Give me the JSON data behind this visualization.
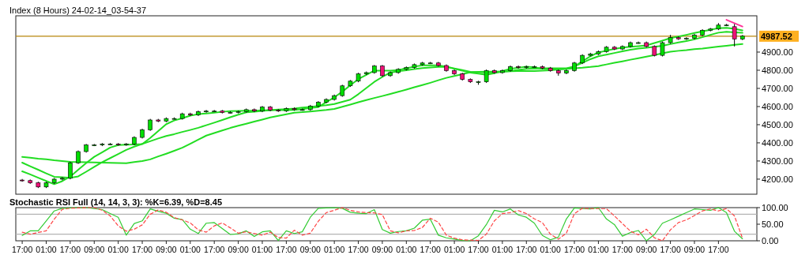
{
  "chart_data": [
    {
      "type": "candlestick",
      "title": "Index (8 Hours) 24-02-14_03-54-37",
      "ylim": [
        4117,
        5100
      ],
      "yticks": [
        {
          "value": 4200,
          "label": "4200.00"
        },
        {
          "value": 4300,
          "label": "4300.00"
        },
        {
          "value": 4400,
          "label": "4400.00"
        },
        {
          "value": 4500,
          "label": "4500.00"
        },
        {
          "value": 4600,
          "label": "4600.00"
        },
        {
          "value": 4700,
          "label": "4700.00"
        },
        {
          "value": 4800,
          "label": "4800.00"
        },
        {
          "value": 4900,
          "label": "4900.00"
        }
      ],
      "categories": [
        null,
        null,
        null,
        null,
        null,
        null,
        null,
        null,
        null,
        null,
        null,
        null,
        null,
        null,
        null,
        null,
        null,
        null,
        null,
        null,
        null,
        null,
        null,
        null,
        null,
        null,
        null,
        null,
        null,
        null,
        null,
        null,
        null,
        null,
        null,
        null,
        null,
        null,
        null,
        null,
        null,
        null,
        null,
        null,
        null,
        null,
        null,
        null,
        null,
        null,
        null,
        null,
        null,
        null,
        null,
        null,
        null,
        null,
        null,
        null,
        null,
        null,
        null,
        null,
        null,
        null,
        null,
        null,
        null,
        null,
        null,
        null,
        null,
        null,
        null,
        null,
        null,
        null,
        null,
        null,
        null,
        null,
        null,
        null,
        null,
        null,
        null,
        null,
        null,
        null,
        null
      ],
      "ohlc": [
        [
          4195,
          4201,
          4186,
          4192
        ],
        [
          4192,
          4198,
          4174,
          4180
        ],
        [
          4180,
          4186,
          4151,
          4157
        ],
        [
          4157,
          4186,
          4151,
          4180
        ],
        [
          4180,
          4206,
          4174,
          4200
        ],
        [
          4200,
          4211,
          4194,
          4205
        ],
        [
          4205,
          4296,
          4199,
          4290
        ],
        [
          4290,
          4358,
          4284,
          4352
        ],
        [
          4352,
          4394,
          4346,
          4388
        ],
        [
          4388,
          4394,
          4382,
          4388
        ],
        [
          4388,
          4399,
          4382,
          4393
        ],
        [
          4393,
          4399,
          4387,
          4393
        ],
        [
          4393,
          4399,
          4384,
          4390
        ],
        [
          4390,
          4399,
          4384,
          4393
        ],
        [
          4393,
          4436,
          4387,
          4430
        ],
        [
          4430,
          4478,
          4424,
          4472
        ],
        [
          4472,
          4532,
          4466,
          4526
        ],
        [
          4526,
          4532,
          4514,
          4520
        ],
        [
          4520,
          4540,
          4514,
          4534
        ],
        [
          4534,
          4540,
          4528,
          4534
        ],
        [
          4534,
          4566,
          4528,
          4560
        ],
        [
          4560,
          4566,
          4548,
          4554
        ],
        [
          4554,
          4578,
          4548,
          4572
        ],
        [
          4572,
          4581,
          4566,
          4575
        ],
        [
          4575,
          4581,
          4569,
          4575
        ],
        [
          4575,
          4581,
          4562,
          4568
        ],
        [
          4568,
          4574,
          4562,
          4568
        ],
        [
          4568,
          4578,
          4562,
          4572
        ],
        [
          4572,
          4589,
          4566,
          4583
        ],
        [
          4583,
          4589,
          4569,
          4575
        ],
        [
          4575,
          4603,
          4569,
          4597
        ],
        [
          4597,
          4603,
          4574,
          4580
        ],
        [
          4580,
          4586,
          4570,
          4576
        ],
        [
          4576,
          4595,
          4570,
          4589
        ],
        [
          4589,
          4595,
          4577,
          4583
        ],
        [
          4583,
          4589,
          4577,
          4583
        ],
        [
          4583,
          4609,
          4577,
          4603
        ],
        [
          4603,
          4630,
          4597,
          4624
        ],
        [
          4624,
          4645,
          4618,
          4639
        ],
        [
          4639,
          4666,
          4633,
          4660
        ],
        [
          4660,
          4720,
          4654,
          4714
        ],
        [
          4714,
          4746,
          4708,
          4740
        ],
        [
          4740,
          4786,
          4734,
          4780
        ],
        [
          4780,
          4793,
          4774,
          4787
        ],
        [
          4787,
          4829,
          4781,
          4823
        ],
        [
          4823,
          4829,
          4764,
          4770
        ],
        [
          4770,
          4793,
          4764,
          4787
        ],
        [
          4787,
          4811,
          4781,
          4805
        ],
        [
          4805,
          4821,
          4799,
          4815
        ],
        [
          4815,
          4837,
          4809,
          4831
        ],
        [
          4831,
          4846,
          4825,
          4840
        ],
        [
          4840,
          4846,
          4834,
          4840
        ],
        [
          4840,
          4846,
          4820,
          4826
        ],
        [
          4826,
          4832,
          4792,
          4798
        ],
        [
          4798,
          4804,
          4774,
          4780
        ],
        [
          4780,
          4786,
          4743,
          4749
        ],
        [
          4749,
          4755,
          4730,
          4736
        ],
        [
          4736,
          4742,
          4720,
          4736
        ],
        [
          4736,
          4804,
          4730,
          4798
        ],
        [
          4798,
          4804,
          4781,
          4787
        ],
        [
          4787,
          4804,
          4781,
          4798
        ],
        [
          4798,
          4826,
          4792,
          4820
        ],
        [
          4820,
          4826,
          4809,
          4815
        ],
        [
          4815,
          4826,
          4809,
          4820
        ],
        [
          4820,
          4826,
          4814,
          4820
        ],
        [
          4820,
          4826,
          4806,
          4812
        ],
        [
          4812,
          4818,
          4792,
          4798
        ],
        [
          4798,
          4804,
          4770,
          4784
        ],
        [
          4784,
          4804,
          4778,
          4798
        ],
        [
          4798,
          4846,
          4792,
          4840
        ],
        [
          4840,
          4888,
          4834,
          4882
        ],
        [
          4882,
          4896,
          4876,
          4890
        ],
        [
          4890,
          4909,
          4884,
          4903
        ],
        [
          4903,
          4933,
          4897,
          4927
        ],
        [
          4927,
          4933,
          4911,
          4917
        ],
        [
          4917,
          4937,
          4911,
          4931
        ],
        [
          4931,
          4958,
          4925,
          4952
        ],
        [
          4952,
          4958,
          4946,
          4952
        ],
        [
          4952,
          4958,
          4925,
          4931
        ],
        [
          4931,
          4937,
          4876,
          4882
        ],
        [
          4882,
          4958,
          4876,
          4952
        ],
        [
          4952,
          4995,
          4946,
          4980
        ],
        [
          4980,
          4986,
          4967,
          4973
        ],
        [
          4973,
          4982,
          4967,
          4976
        ],
        [
          4976,
          5000,
          4970,
          4994
        ],
        [
          4994,
          5026,
          4988,
          5020
        ],
        [
          5020,
          5033,
          5014,
          5027
        ],
        [
          5027,
          5060,
          5021,
          5049
        ],
        [
          5049,
          5055,
          5043,
          5049
        ],
        [
          5040,
          5055,
          4931,
          4972
        ],
        [
          4972,
          4994,
          4966,
          4988
        ]
      ],
      "series": [
        {
          "type": "line",
          "color": "#22dd22",
          "values": [
            4323,
            4318,
            4313,
            4309,
            4304,
            4300,
            4295,
            4294,
            4293,
            4292,
            4291,
            4290,
            4289,
            4288,
            4294,
            4300,
            4309,
            4325,
            4340,
            4356,
            4373,
            4395,
            4418,
            4440,
            4454,
            4468,
            4482,
            4494,
            4505,
            4517,
            4528,
            4540,
            4549,
            4557,
            4566,
            4569,
            4573,
            4577,
            4581,
            4587,
            4599,
            4611,
            4624,
            4636,
            4647,
            4658,
            4669,
            4681,
            4693,
            4706,
            4718,
            4731,
            4745,
            4758,
            4768,
            4778,
            4789,
            4791,
            4792,
            4792,
            4793,
            4794,
            4795,
            4795,
            4796,
            4798,
            4800,
            4804,
            4807,
            4811,
            4814,
            4818,
            4823,
            4832,
            4841,
            4849,
            4858,
            4866,
            4875,
            4884,
            4893,
            4902,
            4907,
            4911,
            4916,
            4920,
            4925,
            4930,
            4935,
            4940,
            4945
          ]
        },
        {
          "type": "line",
          "color": "#22dd22",
          "values": [
            4291,
            4271,
            4252,
            4232,
            4213,
            4210,
            4207,
            4215,
            4241,
            4268,
            4294,
            4316,
            4338,
            4361,
            4379,
            4394,
            4409,
            4424,
            4438,
            4448,
            4460,
            4471,
            4483,
            4497,
            4511,
            4526,
            4541,
            4555,
            4568,
            4572,
            4576,
            4580,
            4583,
            4586,
            4589,
            4594,
            4598,
            4603,
            4607,
            4614,
            4626,
            4638,
            4668,
            4702,
            4736,
            4763,
            4787,
            4794,
            4800,
            4806,
            4812,
            4815,
            4818,
            4819,
            4810,
            4801,
            4791,
            4789,
            4788,
            4787,
            4791,
            4796,
            4802,
            4807,
            4809,
            4811,
            4811,
            4811,
            4811,
            4821,
            4841,
            4861,
            4877,
            4886,
            4895,
            4904,
            4913,
            4919,
            4924,
            4929,
            4935,
            4944,
            4953,
            4961,
            4970,
            4982,
            4995,
            5007,
            5012,
            5009,
            5006
          ]
        },
        {
          "type": "line",
          "color": "#22dd22",
          "values": [
            4243,
            4226,
            4208,
            4190,
            4172,
            4189,
            4214,
            4252,
            4289,
            4323,
            4348,
            4374,
            4388,
            4390,
            4391,
            4393,
            4427,
            4465,
            4503,
            4523,
            4536,
            4550,
            4558,
            4562,
            4566,
            4571,
            4575,
            4576,
            4577,
            4577,
            4579,
            4580,
            4580,
            4580,
            4581,
            4586,
            4592,
            4597,
            4624,
            4651,
            4682,
            4717,
            4751,
            4774,
            4798,
            4798,
            4798,
            4801,
            4811,
            4820,
            4827,
            4827,
            4827,
            4819,
            4808,
            4798,
            4787,
            4781,
            4775,
            4783,
            4796,
            4808,
            4814,
            4820,
            4816,
            4809,
            4807,
            4807,
            4807,
            4821,
            4849,
            4877,
            4898,
            4908,
            4917,
            4925,
            4929,
            4933,
            4937,
            4950,
            4963,
            4977,
            4986,
            4995,
            5005,
            5014,
            5023,
            5032,
            5034,
            5028,
            5020
          ]
        },
        {
          "type": "line",
          "color": "#ff3399",
          "values": [
            null,
            null,
            null,
            null,
            null,
            null,
            null,
            null,
            null,
            null,
            null,
            null,
            null,
            null,
            null,
            null,
            null,
            null,
            null,
            null,
            null,
            null,
            null,
            null,
            null,
            null,
            null,
            null,
            null,
            null,
            null,
            null,
            null,
            null,
            null,
            null,
            null,
            null,
            null,
            null,
            null,
            null,
            null,
            null,
            null,
            null,
            null,
            null,
            null,
            null,
            null,
            null,
            null,
            null,
            null,
            null,
            null,
            null,
            null,
            null,
            null,
            null,
            null,
            null,
            null,
            null,
            null,
            null,
            null,
            null,
            null,
            null,
            null,
            null,
            null,
            null,
            null,
            null,
            null,
            null,
            null,
            null,
            null,
            null,
            null,
            null,
            null,
            null,
            5078,
            5059,
            5041
          ]
        }
      ],
      "ref_lines": [
        {
          "axis": "y",
          "value": 4987.52,
          "label": "4987.52",
          "color": "#b8860b"
        }
      ]
    },
    {
      "type": "line",
      "title": "Stochastic RSI Full (14, 14, 3, 3): %K=6.39, %D=8.45",
      "ylim": [
        0,
        100
      ],
      "yticks": [
        {
          "value": 0,
          "label": "0.00"
        },
        {
          "value": 50,
          "label": "50.00"
        },
        {
          "value": 100,
          "label": "100.00"
        }
      ],
      "categories": [
        "17:00",
        null,
        null,
        "01:00",
        null,
        null,
        "17:00",
        null,
        null,
        "09:00",
        null,
        null,
        "01:00",
        null,
        null,
        "17:00",
        null,
        null,
        "09:00",
        null,
        null,
        "01:00",
        null,
        null,
        "17:00",
        null,
        null,
        "09:00",
        null,
        null,
        "01:00",
        null,
        null,
        "17:00",
        null,
        null,
        "09:00",
        null,
        null,
        "01:00",
        null,
        null,
        "17:00",
        null,
        null,
        "09:00",
        null,
        null,
        "01:00",
        null,
        null,
        "17:00",
        null,
        null,
        "01:00",
        null,
        null,
        "17:00",
        null,
        null,
        "01:00",
        null,
        null,
        "17:00",
        null,
        null,
        "01:00",
        null,
        null,
        "17:00",
        null,
        null,
        "01:00",
        null,
        null,
        "17:00",
        null,
        null,
        "09:00",
        null,
        null,
        "17:00",
        null,
        null,
        "09:00",
        null,
        null,
        "17:00",
        null,
        null,
        null
      ],
      "series": [
        {
          "color": "#33cc33",
          "line_style": "solid",
          "values": [
            16,
            30,
            30,
            60,
            90,
            98,
            99,
            100,
            100,
            97,
            94,
            82,
            71,
            17,
            52,
            60,
            96,
            89,
            83,
            68,
            64,
            35,
            22,
            53,
            55,
            37,
            19,
            21,
            30,
            13,
            27,
            30,
            1,
            30,
            22,
            27,
            71,
            98,
            99,
            100,
            98,
            86,
            83,
            82,
            94,
            34,
            23,
            28,
            30,
            38,
            62,
            65,
            17,
            9,
            5,
            1,
            0,
            15,
            49,
            92,
            87,
            96,
            78,
            71,
            53,
            16,
            3,
            11,
            66,
            99,
            97,
            96,
            100,
            66,
            49,
            14,
            25,
            31,
            0,
            19,
            53,
            63,
            74,
            85,
            96,
            94,
            92,
            100,
            85,
            29,
            6
          ]
        },
        {
          "color": "#ff4444",
          "line_style": "dashed",
          "values": [
            26,
            20,
            25,
            30,
            65,
            95,
            98,
            99,
            100,
            100,
            92,
            75,
            45,
            29,
            35,
            48,
            80,
            93,
            86,
            70,
            63,
            54,
            33,
            26,
            45,
            54,
            39,
            23,
            27,
            22,
            17,
            26,
            10,
            8,
            32,
            17,
            23,
            59,
            85,
            92,
            100,
            92,
            87,
            85,
            84,
            79,
            30,
            24,
            30,
            31,
            40,
            68,
            56,
            17,
            8,
            3,
            2,
            1,
            20,
            60,
            82,
            85,
            91,
            82,
            66,
            55,
            20,
            5,
            23,
            82,
            98,
            97,
            97,
            97,
            75,
            52,
            29,
            18,
            35,
            9,
            0,
            33,
            55,
            63,
            76,
            90,
            96,
            90,
            97,
            75,
            8
          ]
        }
      ],
      "ref_lines": [
        {
          "axis": "y",
          "value": 80,
          "color": "#b4b4b4"
        },
        {
          "axis": "y",
          "value": 20,
          "color": "#b4b4b4"
        }
      ]
    }
  ]
}
